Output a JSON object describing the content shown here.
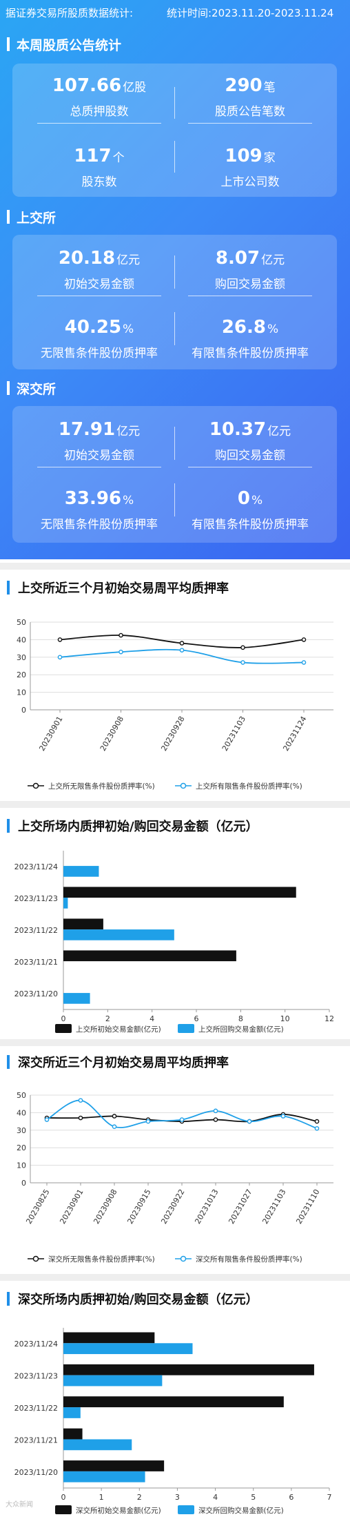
{
  "header": {
    "left": "据证券交易所股质数据统计:",
    "right": "统计时间:2023.11.20-2023.11.24"
  },
  "section_weekly": {
    "title": "本周股质公告统计",
    "stats": [
      {
        "value": "107.66",
        "unit": "亿股",
        "label": "总质押股数"
      },
      {
        "value": "290",
        "unit": "笔",
        "label": "股质公告笔数"
      },
      {
        "value": "117",
        "unit": "个",
        "label": "股东数"
      },
      {
        "value": "109",
        "unit": "家",
        "label": "上市公司数"
      }
    ]
  },
  "section_sse": {
    "title": "上交所",
    "stats": [
      {
        "value": "20.18",
        "unit": "亿元",
        "label": "初始交易金额"
      },
      {
        "value": "8.07",
        "unit": "亿元",
        "label": "购回交易金额"
      },
      {
        "value": "40.25",
        "unit": "%",
        "label": "无限售条件股份质押率"
      },
      {
        "value": "26.8",
        "unit": "%",
        "label": "有限售条件股份质押率"
      }
    ]
  },
  "section_szse": {
    "title": "深交所",
    "stats": [
      {
        "value": "17.91",
        "unit": "亿元",
        "label": "初始交易金额"
      },
      {
        "value": "10.37",
        "unit": "亿元",
        "label": "购回交易金额"
      },
      {
        "value": "33.96",
        "unit": "%",
        "label": "无限售条件股份质押率"
      },
      {
        "value": "0",
        "unit": "%",
        "label": "有限售条件股份质押率"
      }
    ]
  },
  "watermark": "大众新闻",
  "colors": {
    "series_dark": "#111111",
    "series_blue": "#1fa0e8",
    "accent": "#1f8fe8"
  },
  "chart_data": [
    {
      "type": "line",
      "title": "上交所近三个月初始交易周平均质押率",
      "x": [
        "20230901",
        "20230908",
        "20230928",
        "20231103",
        "20231124"
      ],
      "ylim": [
        0,
        50
      ],
      "yticks": [
        0,
        10,
        20,
        30,
        40,
        50
      ],
      "grid": true,
      "legend": "bottom",
      "series": [
        {
          "name": "上交所无限售条件股份质押率(%)",
          "values": [
            40,
            42.5,
            38,
            35.5,
            40
          ],
          "color": "#111111",
          "smooth": true
        },
        {
          "name": "上交所有限售条件股份质押率(%)",
          "values": [
            30,
            33,
            34,
            27,
            27
          ],
          "color": "#1fa0e8",
          "smooth": true
        }
      ]
    },
    {
      "type": "bar",
      "orientation": "horizontal",
      "title": "上交所场内质押初始/购回交易金额（亿元）",
      "categories": [
        "2023/11/24",
        "2023/11/23",
        "2023/11/22",
        "2023/11/21",
        "2023/11/20"
      ],
      "xlim": [
        0,
        12
      ],
      "xticks": [
        0,
        2,
        4,
        6,
        8,
        10,
        12
      ],
      "legend": "bottom",
      "series": [
        {
          "name": "上交所初始交易金额(亿元)",
          "values": [
            0,
            10.5,
            1.8,
            7.8,
            0
          ],
          "color": "#111111"
        },
        {
          "name": "上交所回购交易金额(亿元)",
          "values": [
            1.6,
            0.2,
            5.0,
            0,
            1.2
          ],
          "color": "#1fa0e8"
        }
      ]
    },
    {
      "type": "line",
      "title": "深交所近三个月初始交易周平均质押率",
      "x": [
        "20230825",
        "20230901",
        "20230908",
        "20230915",
        "20230922",
        "20231013",
        "20231027",
        "20231103",
        "20231110"
      ],
      "ylim": [
        0,
        50
      ],
      "yticks": [
        0,
        10,
        20,
        30,
        40,
        50
      ],
      "grid": true,
      "legend": "bottom",
      "series": [
        {
          "name": "深交所无限售条件股份质押率(%)",
          "values": [
            37,
            37,
            38,
            36,
            35,
            36,
            35,
            39,
            35
          ],
          "color": "#111111",
          "smooth": true
        },
        {
          "name": "深交所有限售条件股份质押率(%)",
          "values": [
            36,
            47,
            32,
            35,
            36,
            41,
            35,
            38,
            31
          ],
          "color": "#1fa0e8",
          "smooth": true
        }
      ]
    },
    {
      "type": "bar",
      "orientation": "horizontal",
      "title": "深交所场内质押初始/购回交易金额（亿元）",
      "categories": [
        "2023/11/24",
        "2023/11/23",
        "2023/11/22",
        "2023/11/21",
        "2023/11/20"
      ],
      "xlim": [
        0,
        7
      ],
      "xticks": [
        0,
        1,
        2,
        3,
        4,
        5,
        6,
        7
      ],
      "legend": "bottom",
      "series": [
        {
          "name": "深交所初始交易金额(亿元)",
          "values": [
            2.4,
            6.6,
            5.8,
            0.5,
            2.65
          ],
          "color": "#111111"
        },
        {
          "name": "深交所回购交易金额(亿元)",
          "values": [
            3.4,
            2.6,
            0.45,
            1.8,
            2.15
          ],
          "color": "#1fa0e8"
        }
      ]
    }
  ]
}
